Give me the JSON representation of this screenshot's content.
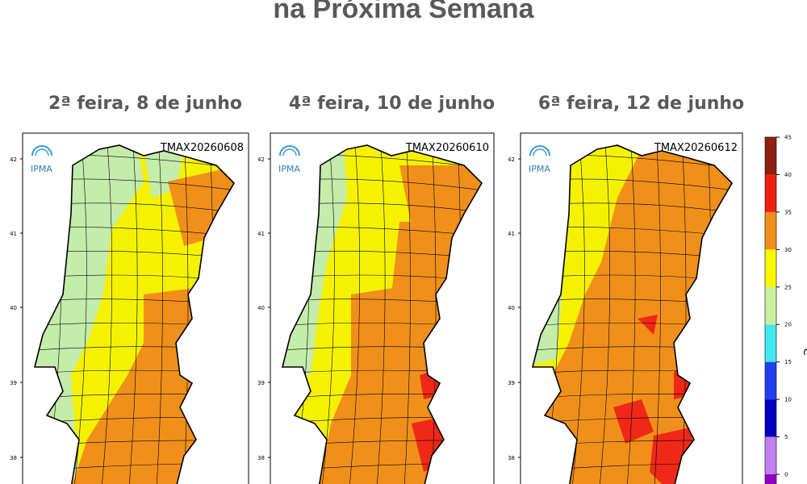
{
  "title": "na Próxima Semana",
  "maps": [
    {
      "day": "2ª feira, 8 de junho",
      "label": "TMAX20260608",
      "logo": "IPMA",
      "lat_ticks": [
        42,
        41,
        40,
        39,
        38
      ]
    },
    {
      "day": "4ª feira, 10 de junho",
      "label": "TMAX20260610",
      "logo": "IPMA",
      "lat_ticks": [
        42,
        41,
        40,
        39,
        38
      ]
    },
    {
      "day": "6ª feira, 12 de junho",
      "label": "TMAX20260612",
      "logo": "IPMA",
      "lat_ticks": [
        42,
        41,
        40,
        39,
        38
      ]
    }
  ],
  "colorbar": {
    "ticks": [
      0,
      5,
      10,
      15,
      20,
      25,
      30,
      35,
      40,
      45
    ],
    "unit": "°C",
    "colors": [
      "#c080f0",
      "#0000c0",
      "#2040f0",
      "#40e8f0",
      "#c8f0a0",
      "#f8f800",
      "#f09018",
      "#f02010",
      "#902010"
    ]
  }
}
